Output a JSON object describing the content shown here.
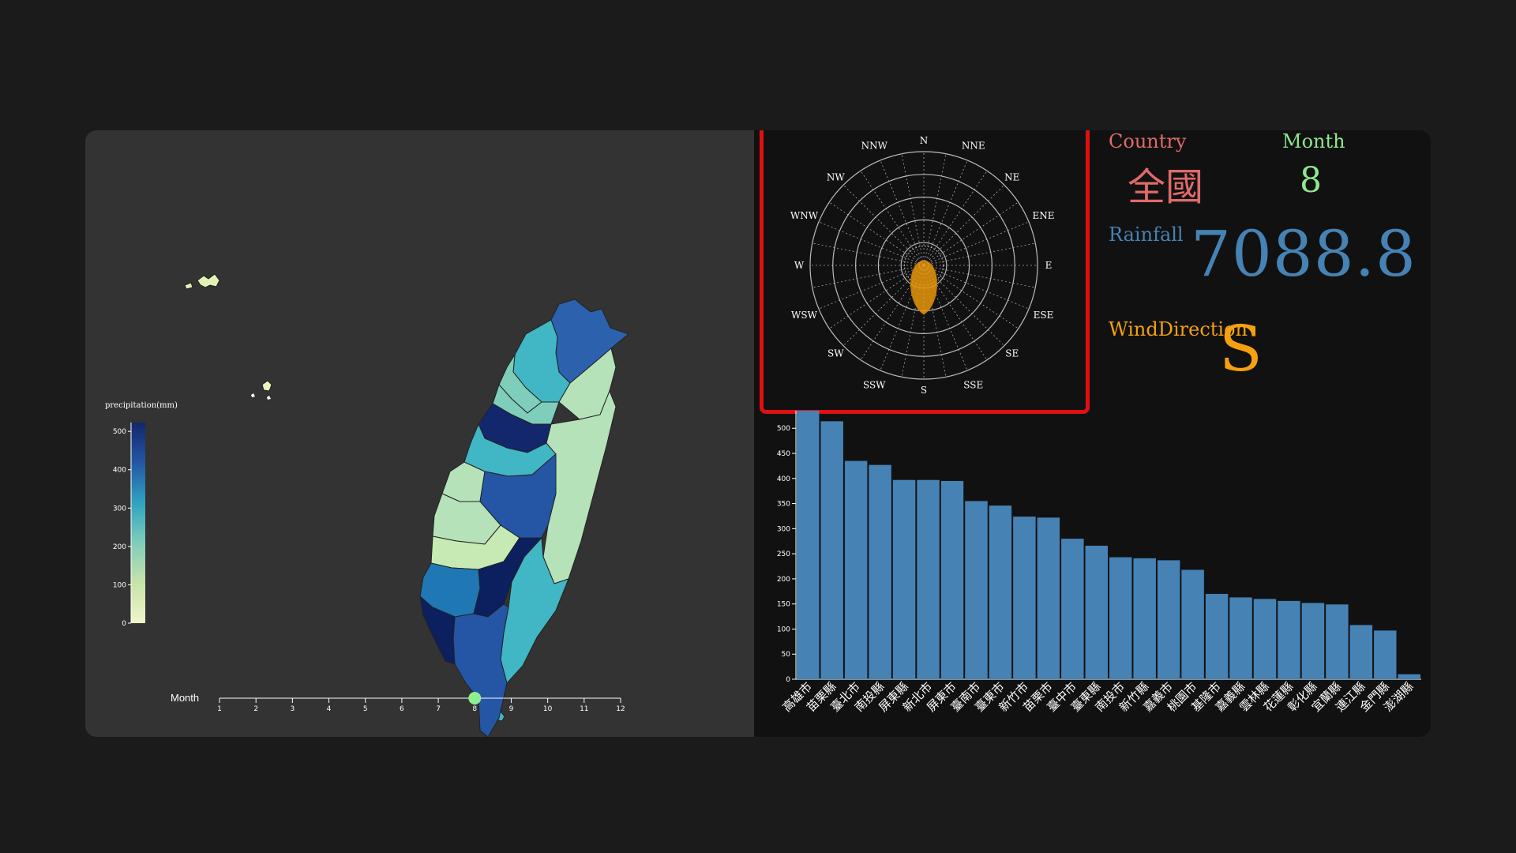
{
  "colors": {
    "page_bg": "#1b1b1b",
    "panel_bg": "#111111",
    "map_bg": "#333333",
    "highlight_border": "#e01010",
    "bar": "#4682b4",
    "rose_fill": "#e8960c",
    "country_color": "#e06a6a",
    "month_color": "#8ee88e",
    "rainfall_color": "#4682b4",
    "wind_color": "#f5a10f",
    "slider_handle": "#90ee90"
  },
  "map": {
    "legend_title": "precipitation(mm)",
    "legend_ticks": [
      "0",
      "100",
      "200",
      "300",
      "400",
      "500"
    ],
    "color_scale": "YlGnBu"
  },
  "slider": {
    "label": "Month",
    "ticks": [
      "1",
      "2",
      "3",
      "4",
      "5",
      "6",
      "7",
      "8",
      "9",
      "10",
      "11",
      "12"
    ],
    "value": 8,
    "min": 1,
    "max": 12
  },
  "info": {
    "country_label": "Country",
    "country_value": "全國",
    "month_label": "Month",
    "month_value": "8",
    "rainfall_label": "Rainfall",
    "rainfall_value": "7088.8",
    "wind_label": "WindDirection",
    "wind_value": "S"
  },
  "rose": {
    "directions": [
      "N",
      "NNE",
      "NE",
      "ENE",
      "E",
      "ESE",
      "SE",
      "SSE",
      "S",
      "SSW",
      "SW",
      "WSW",
      "W",
      "WNW",
      "NW",
      "NNW"
    ],
    "rings": 5,
    "dominant": "S"
  },
  "chart_data": {
    "type": "bar",
    "title": "",
    "xlabel": "",
    "ylabel": "",
    "ylim": [
      0,
      535
    ],
    "yticks": [
      0,
      50,
      100,
      150,
      200,
      250,
      300,
      350,
      400,
      450,
      500
    ],
    "categories": [
      "高雄市",
      "苗栗縣",
      "臺北市",
      "南投縣",
      "屏東縣",
      "新北市",
      "屏東市",
      "臺南市",
      "臺東市",
      "新竹市",
      "苗栗市",
      "臺中市",
      "臺東縣",
      "南投市",
      "新竹縣",
      "嘉義市",
      "桃園市",
      "基隆市",
      "嘉義縣",
      "雲林縣",
      "花蓮縣",
      "彰化縣",
      "宜蘭縣",
      "連江縣",
      "金門縣",
      "澎湖縣"
    ],
    "values": [
      535,
      514,
      435,
      427,
      397,
      397,
      395,
      355,
      346,
      324,
      322,
      280,
      266,
      243,
      241,
      237,
      218,
      170,
      163,
      160,
      156,
      152,
      149,
      108,
      97,
      10
    ]
  }
}
